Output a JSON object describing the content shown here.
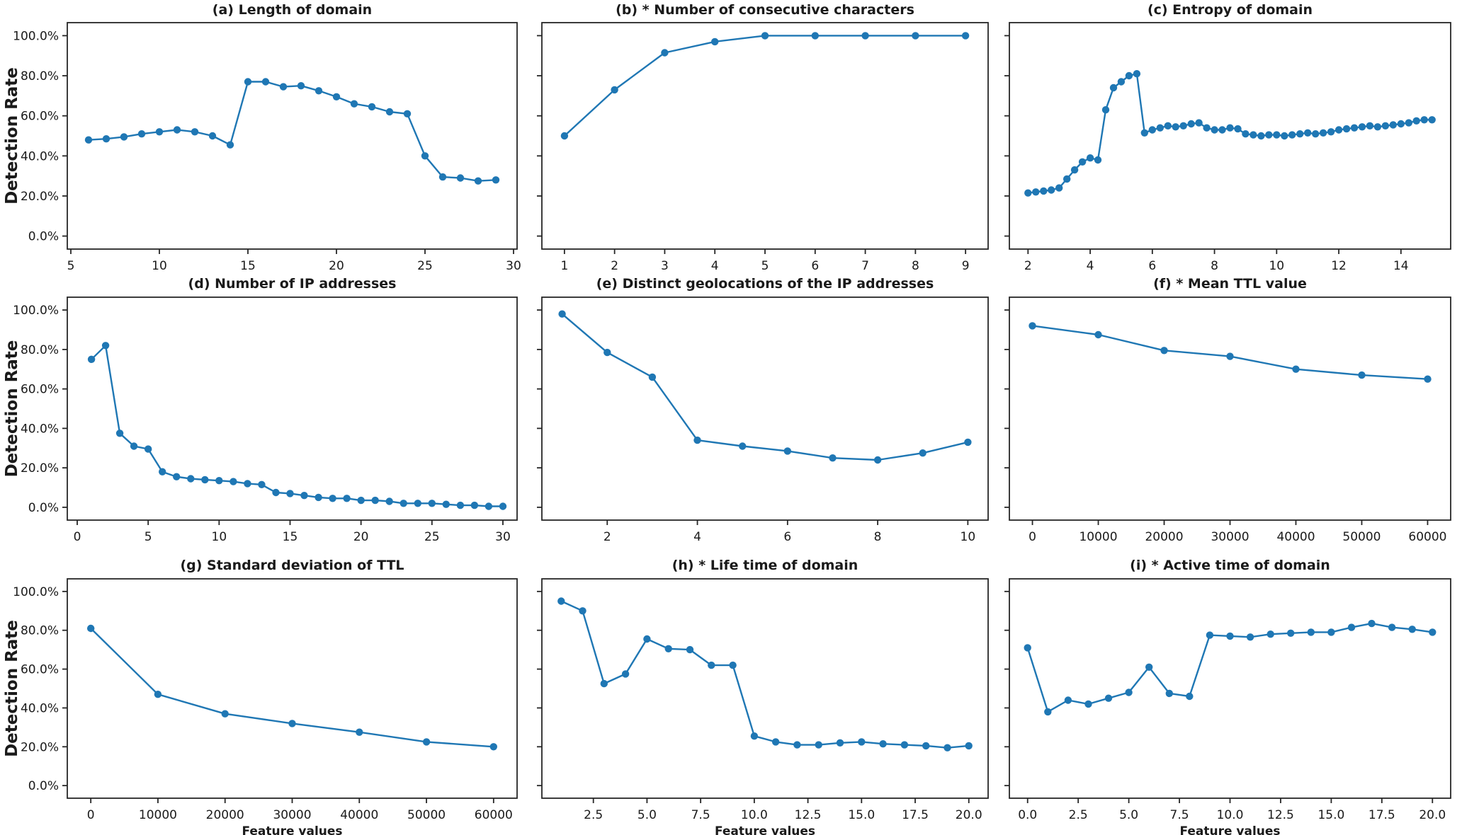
{
  "figure": {
    "ylabel": "Detection Rate",
    "xlabel": "Feature values",
    "line_color": "#1f77b4",
    "axis_color": "#262626",
    "background": "#ffffff",
    "ytick_values": [
      0,
      20,
      40,
      60,
      80,
      100
    ],
    "ytick_labels": [
      "0.0%",
      "20.0%",
      "40.0%",
      "60.0%",
      "80.0%",
      "100.0%"
    ],
    "ylim": [
      -6.5,
      106.5
    ]
  },
  "chart_data": [
    {
      "id": "a",
      "type": "line",
      "row": 0,
      "col": 0,
      "title": "(a) Length of domain",
      "show_ytick_labels": true,
      "ylabel": "Detection Rate",
      "xlabel": "",
      "xlim": [
        4.8,
        30.2
      ],
      "xticks": [
        5,
        10,
        15,
        20,
        25,
        30
      ],
      "xtick_labels": [
        "5",
        "10",
        "15",
        "20",
        "25",
        "30"
      ],
      "x": [
        6,
        7,
        8,
        9,
        10,
        11,
        12,
        13,
        14,
        15,
        16,
        17,
        18,
        19,
        20,
        21,
        22,
        23,
        24,
        25,
        26,
        27,
        28,
        29
      ],
      "y": [
        48,
        48.5,
        49.5,
        51,
        52,
        53,
        52,
        50,
        45.5,
        77,
        77,
        74.5,
        75,
        72.5,
        69.5,
        66,
        64.5,
        62,
        61,
        40,
        29.5,
        29,
        27.5,
        28
      ]
    },
    {
      "id": "b",
      "type": "line",
      "row": 0,
      "col": 1,
      "title": "(b) * Number of consecutive characters",
      "show_ytick_labels": false,
      "ylabel": "",
      "xlabel": "",
      "xlim": [
        0.55,
        9.45
      ],
      "xticks": [
        1,
        2,
        3,
        4,
        5,
        6,
        7,
        8,
        9
      ],
      "xtick_labels": [
        "1",
        "2",
        "3",
        "4",
        "5",
        "6",
        "7",
        "8",
        "9"
      ],
      "x": [
        1,
        2,
        3,
        4,
        5,
        6,
        7,
        8,
        9
      ],
      "y": [
        50,
        73,
        91.5,
        97,
        100,
        100,
        100,
        100,
        100
      ]
    },
    {
      "id": "c",
      "type": "line",
      "row": 0,
      "col": 2,
      "title": "(c) Entropy of domain",
      "show_ytick_labels": false,
      "ylabel": "",
      "xlabel": "",
      "xlim": [
        1.4,
        15.6
      ],
      "xticks": [
        2,
        4,
        6,
        8,
        10,
        12,
        14
      ],
      "xtick_labels": [
        "2",
        "4",
        "6",
        "8",
        "10",
        "12",
        "14"
      ],
      "x": [
        2,
        2.25,
        2.5,
        2.75,
        3,
        3.25,
        3.5,
        3.75,
        4,
        4.25,
        4.5,
        4.75,
        5,
        5.25,
        5.5,
        5.75,
        6,
        6.25,
        6.5,
        6.75,
        7,
        7.25,
        7.5,
        7.75,
        8,
        8.25,
        8.5,
        8.75,
        9,
        9.25,
        9.5,
        9.75,
        10,
        10.25,
        10.5,
        10.75,
        11,
        11.25,
        11.5,
        11.75,
        12,
        12.25,
        12.5,
        12.75,
        13,
        13.25,
        13.5,
        13.75,
        14,
        14.25,
        14.5,
        14.75,
        15
      ],
      "y": [
        21.5,
        22,
        22.5,
        23,
        24,
        28.5,
        33,
        37,
        39,
        38,
        63,
        74,
        77,
        80,
        81,
        51.5,
        53,
        54,
        55,
        54.5,
        55,
        56,
        56.5,
        54,
        53,
        53,
        54,
        53.5,
        51,
        50.5,
        50,
        50.5,
        50.5,
        50,
        50.5,
        51,
        51.5,
        51,
        51.5,
        52,
        53,
        53.5,
        54,
        54.5,
        55,
        54.5,
        55,
        55.5,
        56,
        56.5,
        57.5,
        58,
        58
      ]
    },
    {
      "id": "d",
      "type": "line",
      "row": 1,
      "col": 0,
      "title": "(d) Number of IP addresses",
      "show_ytick_labels": true,
      "ylabel": "Detection Rate",
      "xlabel": "",
      "xlim": [
        -0.7,
        31
      ],
      "xticks": [
        0,
        5,
        10,
        15,
        20,
        25,
        30
      ],
      "xtick_labels": [
        "0",
        "5",
        "10",
        "15",
        "20",
        "25",
        "30"
      ],
      "x": [
        1,
        2,
        3,
        4,
        5,
        6,
        7,
        8,
        9,
        10,
        11,
        12,
        13,
        14,
        15,
        16,
        17,
        18,
        19,
        20,
        21,
        22,
        23,
        24,
        25,
        26,
        27,
        28,
        29,
        30
      ],
      "y": [
        75,
        82,
        37.5,
        31,
        29.5,
        18,
        15.5,
        14.5,
        14,
        13.5,
        13,
        12,
        11.5,
        7.5,
        7,
        6,
        5,
        4.5,
        4.5,
        3.5,
        3.5,
        3,
        2,
        2,
        2,
        1.5,
        1,
        1,
        0.5,
        0.5
      ]
    },
    {
      "id": "e",
      "type": "line",
      "row": 1,
      "col": 1,
      "title": "(e) Distinct geolocations of the IP addresses",
      "show_ytick_labels": false,
      "ylabel": "",
      "xlabel": "",
      "xlim": [
        0.55,
        10.45
      ],
      "xticks": [
        2,
        4,
        6,
        8,
        10
      ],
      "xtick_labels": [
        "2",
        "4",
        "6",
        "8",
        "10"
      ],
      "x": [
        1,
        2,
        3,
        4,
        5,
        6,
        7,
        8,
        9,
        10
      ],
      "y": [
        98,
        78.5,
        66,
        34,
        31,
        28.5,
        25,
        24,
        27.5,
        33
      ]
    },
    {
      "id": "f",
      "type": "line",
      "row": 1,
      "col": 2,
      "title": "(f) * Mean TTL value",
      "show_ytick_labels": false,
      "ylabel": "",
      "xlabel": "",
      "xlim": [
        -3500,
        63500
      ],
      "xticks": [
        0,
        10000,
        20000,
        30000,
        40000,
        50000,
        60000
      ],
      "xtick_labels": [
        "0",
        "10000",
        "20000",
        "30000",
        "40000",
        "50000",
        "60000"
      ],
      "x": [
        0,
        10000,
        20000,
        30000,
        40000,
        50000,
        60000
      ],
      "y": [
        92,
        87.5,
        79.5,
        76.5,
        70,
        67,
        65
      ]
    },
    {
      "id": "g",
      "type": "line",
      "row": 2,
      "col": 0,
      "title": "(g) Standard deviation of TTL",
      "show_ytick_labels": true,
      "ylabel": "Detection Rate",
      "xlabel": "Feature values",
      "xlim": [
        -3500,
        63500
      ],
      "xticks": [
        0,
        10000,
        20000,
        30000,
        40000,
        50000,
        60000
      ],
      "xtick_labels": [
        "0",
        "10000",
        "20000",
        "30000",
        "40000",
        "50000",
        "60000"
      ],
      "x": [
        0,
        10000,
        20000,
        30000,
        40000,
        50000,
        60000
      ],
      "y": [
        81,
        47,
        37,
        32,
        27.5,
        22.5,
        20
      ]
    },
    {
      "id": "h",
      "type": "line",
      "row": 2,
      "col": 1,
      "title": "(h) * Life time of domain",
      "show_ytick_labels": false,
      "ylabel": "",
      "xlabel": "Feature values",
      "xlim": [
        0.1,
        20.9
      ],
      "xticks": [
        2.5,
        5,
        7.5,
        10,
        12.5,
        15,
        17.5,
        20
      ],
      "xtick_labels": [
        "2.5",
        "5.0",
        "7.5",
        "10.0",
        "12.5",
        "15.0",
        "17.5",
        "20.0"
      ],
      "x": [
        1,
        2,
        3,
        4,
        5,
        6,
        7,
        8,
        9,
        10,
        11,
        12,
        13,
        14,
        15,
        16,
        17,
        18,
        19,
        20
      ],
      "y": [
        95,
        90,
        52.5,
        57.5,
        75.5,
        70.5,
        70,
        62,
        62,
        25.5,
        22.5,
        21,
        21,
        22,
        22.5,
        21.5,
        21,
        20.5,
        19.5,
        20.5
      ]
    },
    {
      "id": "i",
      "type": "line",
      "row": 2,
      "col": 2,
      "title": "(i) * Active time of domain",
      "show_ytick_labels": false,
      "ylabel": "",
      "xlabel": "Feature values",
      "xlim": [
        -0.9,
        20.9
      ],
      "xticks": [
        0,
        2.5,
        5,
        7.5,
        10,
        12.5,
        15,
        17.5,
        20
      ],
      "xtick_labels": [
        "0.0",
        "2.5",
        "5.0",
        "7.5",
        "10.0",
        "12.5",
        "15.0",
        "17.5",
        "20.0"
      ],
      "x": [
        0,
        1,
        2,
        3,
        4,
        5,
        6,
        7,
        8,
        9,
        10,
        11,
        12,
        13,
        14,
        15,
        16,
        17,
        18,
        19,
        20
      ],
      "y": [
        71,
        38,
        44,
        42,
        45,
        48,
        61,
        47.5,
        46,
        77.5,
        77,
        76.5,
        78,
        78.5,
        79,
        79,
        81.5,
        83.5,
        81.5,
        80.5,
        79
      ]
    }
  ]
}
